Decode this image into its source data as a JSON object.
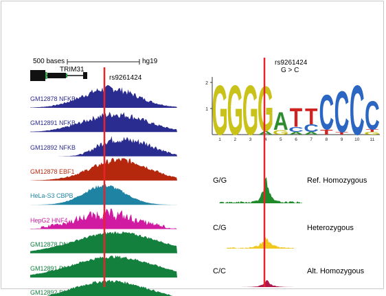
{
  "browser": {
    "scale_label": "500 bases",
    "assembly": "hg19",
    "gene": "TRIM31",
    "snp": "rs9261424",
    "tracks": [
      {
        "label": "GM12878 NFKB",
        "color": "#2b2c8f"
      },
      {
        "label": "GM12891 NFKB",
        "color": "#2b2c8f"
      },
      {
        "label": "GM12892 NFKB",
        "color": "#2b2c8f"
      },
      {
        "label": "GM12878 EBF1",
        "color": "#b5280e"
      },
      {
        "label": "HeLa-S3 CBPB",
        "color": "#1f83a3"
      },
      {
        "label": "HepG2 HNF4",
        "color": "#d11aa2"
      },
      {
        "label": "GM12878 DNase",
        "color": "#13803e"
      },
      {
        "label": "GM12891 DNase",
        "color": "#13803e"
      },
      {
        "label": "GM12892 DNase",
        "color": "#13803e"
      }
    ]
  },
  "motif": {
    "snp": "rs9261424",
    "change": "G > C",
    "y_ticks": [
      "1",
      "2"
    ],
    "positions": [
      "1",
      "2",
      "3",
      "4",
      "5",
      "6",
      "7",
      "8",
      "9",
      "10",
      "11"
    ],
    "letter_colors": {
      "G": "#c9c21a",
      "A": "#2e8b2e",
      "T": "#d12222",
      "C": "#2a66c2"
    }
  },
  "genotypes": [
    {
      "genotype": "G/G",
      "description": "Ref. Homozygous",
      "color": "#1e8a2a"
    },
    {
      "genotype": "C/G",
      "description": "Heterozygous",
      "color": "#f0c820"
    },
    {
      "genotype": "C/C",
      "description": "Alt. Homozygous",
      "color": "#b0174a"
    }
  ],
  "colors": {
    "marker": "#e8232a"
  }
}
